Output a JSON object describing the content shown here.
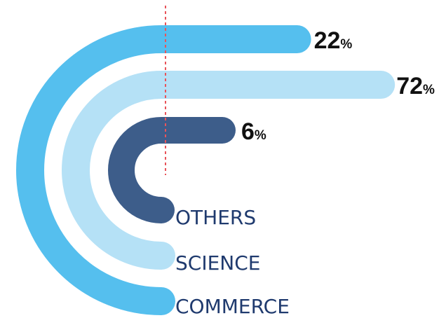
{
  "chart_data": {
    "type": "radial-bar",
    "unit": "%",
    "categories": [
      "OTHERS",
      "SCIENCE",
      "COMMERCE"
    ],
    "values": [
      6,
      72,
      22
    ],
    "colors": [
      "#3d5d8a",
      "#b5e1f6",
      "#55bfee"
    ],
    "value_labels": [
      "6",
      "72",
      "22"
    ],
    "marker": {
      "style": "dashed",
      "color": "#e8545a"
    }
  }
}
